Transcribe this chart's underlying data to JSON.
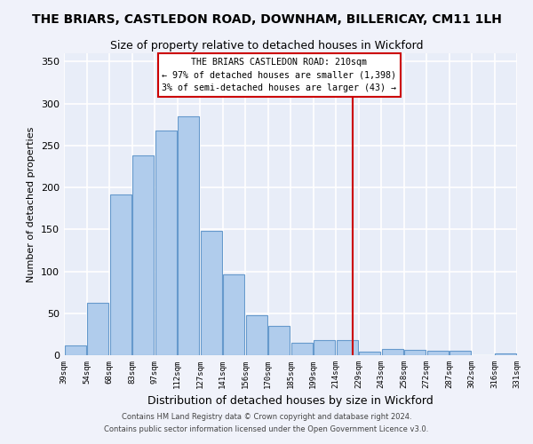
{
  "title": "THE BRIARS, CASTLEDON ROAD, DOWNHAM, BILLERICAY, CM11 1LH",
  "subtitle": "Size of property relative to detached houses in Wickford",
  "xlabel": "Distribution of detached houses by size in Wickford",
  "ylabel": "Number of detached properties",
  "footer1": "Contains HM Land Registry data © Crown copyright and database right 2024.",
  "footer2": "Contains public sector information licensed under the Open Government Licence v3.0.",
  "categories": [
    "39sqm",
    "54sqm",
    "68sqm",
    "83sqm",
    "97sqm",
    "112sqm",
    "127sqm",
    "141sqm",
    "156sqm",
    "170sqm",
    "185sqm",
    "199sqm",
    "214sqm",
    "229sqm",
    "243sqm",
    "258sqm",
    "272sqm",
    "287sqm",
    "302sqm",
    "316sqm",
    "331sqm"
  ],
  "values": [
    12,
    62,
    192,
    238,
    268,
    285,
    148,
    96,
    48,
    35,
    15,
    18,
    18,
    4,
    7,
    6,
    5,
    5,
    0,
    2
  ],
  "bar_color": "#b0ccec",
  "bar_edge_color": "#6699cc",
  "background_color": "#e8edf8",
  "fig_color": "#f0f2fa",
  "grid_color": "#ffffff",
  "marker_color": "#cc0000",
  "annotation_title": "THE BRIARS CASTLEDON ROAD: 210sqm",
  "annotation_line1": "← 97% of detached houses are smaller (1,398)",
  "annotation_line2": "3% of semi-detached houses are larger (43) →",
  "ylim": [
    0,
    360
  ],
  "yticks": [
    0,
    50,
    100,
    150,
    200,
    250,
    300,
    350
  ]
}
